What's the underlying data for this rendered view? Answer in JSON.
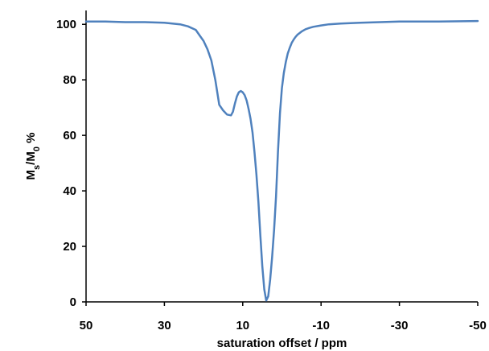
{
  "chart_data": {
    "type": "line",
    "xlabel": "saturation offset / ppm",
    "ylabel": {
      "parts": [
        {
          "text": "M",
          "sub": false
        },
        {
          "text": "s",
          "sub": true
        },
        {
          "text": "/M",
          "sub": false
        },
        {
          "text": "0",
          "sub": true
        },
        {
          "text": " %",
          "sub": false
        }
      ]
    },
    "xlim": [
      50,
      -50
    ],
    "ylim": [
      0,
      105
    ],
    "x_reversed": true,
    "xticks": [
      50,
      30,
      10,
      -10,
      -30,
      -50
    ],
    "xtick_labels": [
      "50",
      "30",
      "10",
      "-10",
      "-30",
      "-50"
    ],
    "yticks": [
      0,
      20,
      40,
      60,
      80,
      100
    ],
    "ytick_labels": [
      "0",
      "20",
      "40",
      "60",
      "80",
      "100"
    ],
    "grid": false,
    "series": [
      {
        "color": "#4f81bd",
        "x": [
          50,
          45,
          40,
          35,
          30,
          26,
          24,
          22,
          21,
          20,
          19,
          18,
          17,
          16,
          15,
          14,
          13,
          12.5,
          12,
          11.5,
          11,
          10.5,
          10,
          9.5,
          9,
          8.5,
          8,
          7.5,
          7,
          6.5,
          6,
          5.5,
          5,
          4.5,
          4,
          3.5,
          3,
          2.5,
          2,
          1.5,
          1,
          0.5,
          0,
          -0.5,
          -1,
          -1.5,
          -2,
          -2.5,
          -3,
          -3.5,
          -4,
          -5,
          -6,
          -7,
          -8,
          -10,
          -12,
          -15,
          -20,
          -25,
          -30,
          -40,
          -50
        ],
        "y": [
          101,
          101,
          100.8,
          100.8,
          100.6,
          100,
          99.3,
          98,
          96,
          94,
          91,
          87,
          80,
          71,
          69,
          67.5,
          67.2,
          68.5,
          71.5,
          74,
          75.5,
          76,
          75.5,
          74.5,
          72.5,
          69.5,
          66,
          61,
          54,
          46,
          36,
          24,
          13,
          4.5,
          0.5,
          2,
          8,
          16,
          26,
          38,
          54,
          68,
          77,
          82.5,
          86.5,
          89.5,
          91.5,
          93.3,
          94.5,
          95.5,
          96.3,
          97.4,
          98.2,
          98.7,
          99.1,
          99.6,
          100,
          100.3,
          100.6,
          100.8,
          101,
          101,
          101.2
        ]
      }
    ]
  }
}
